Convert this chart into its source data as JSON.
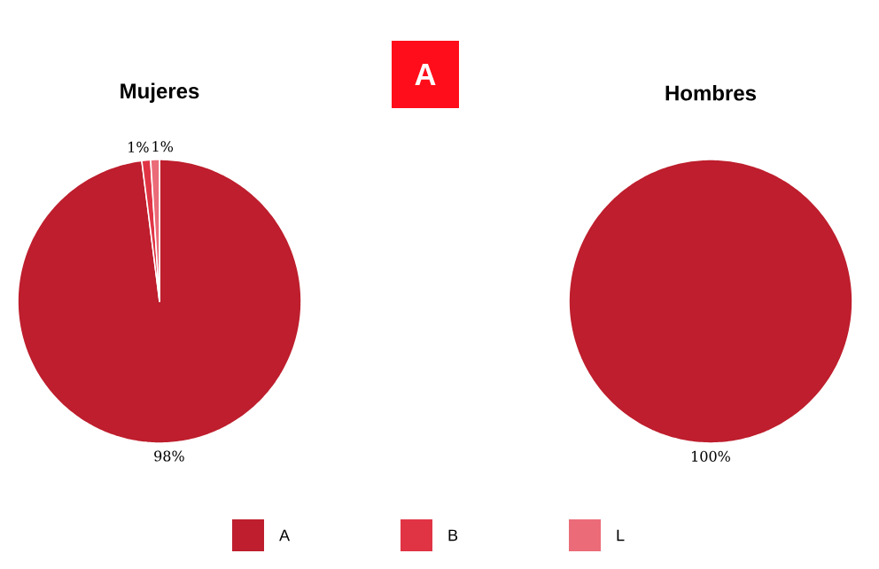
{
  "chart_data": [
    {
      "type": "other",
      "title": "A"
    },
    {
      "type": "pie",
      "title": "Mujeres",
      "categories": [
        "A",
        "B",
        "L"
      ],
      "values": [
        98,
        1,
        1
      ],
      "colors": [
        "#be1e2d",
        "#e03445",
        "#eb6b78"
      ],
      "value_labels": [
        "98%",
        "1%",
        "1%"
      ],
      "legend": "bottom"
    },
    {
      "type": "pie",
      "title": "Hombres",
      "categories": [
        null
      ],
      "values": [
        100
      ],
      "colors": [
        "#be1e2d"
      ],
      "value_labels": [
        "100%"
      ]
    }
  ]
}
